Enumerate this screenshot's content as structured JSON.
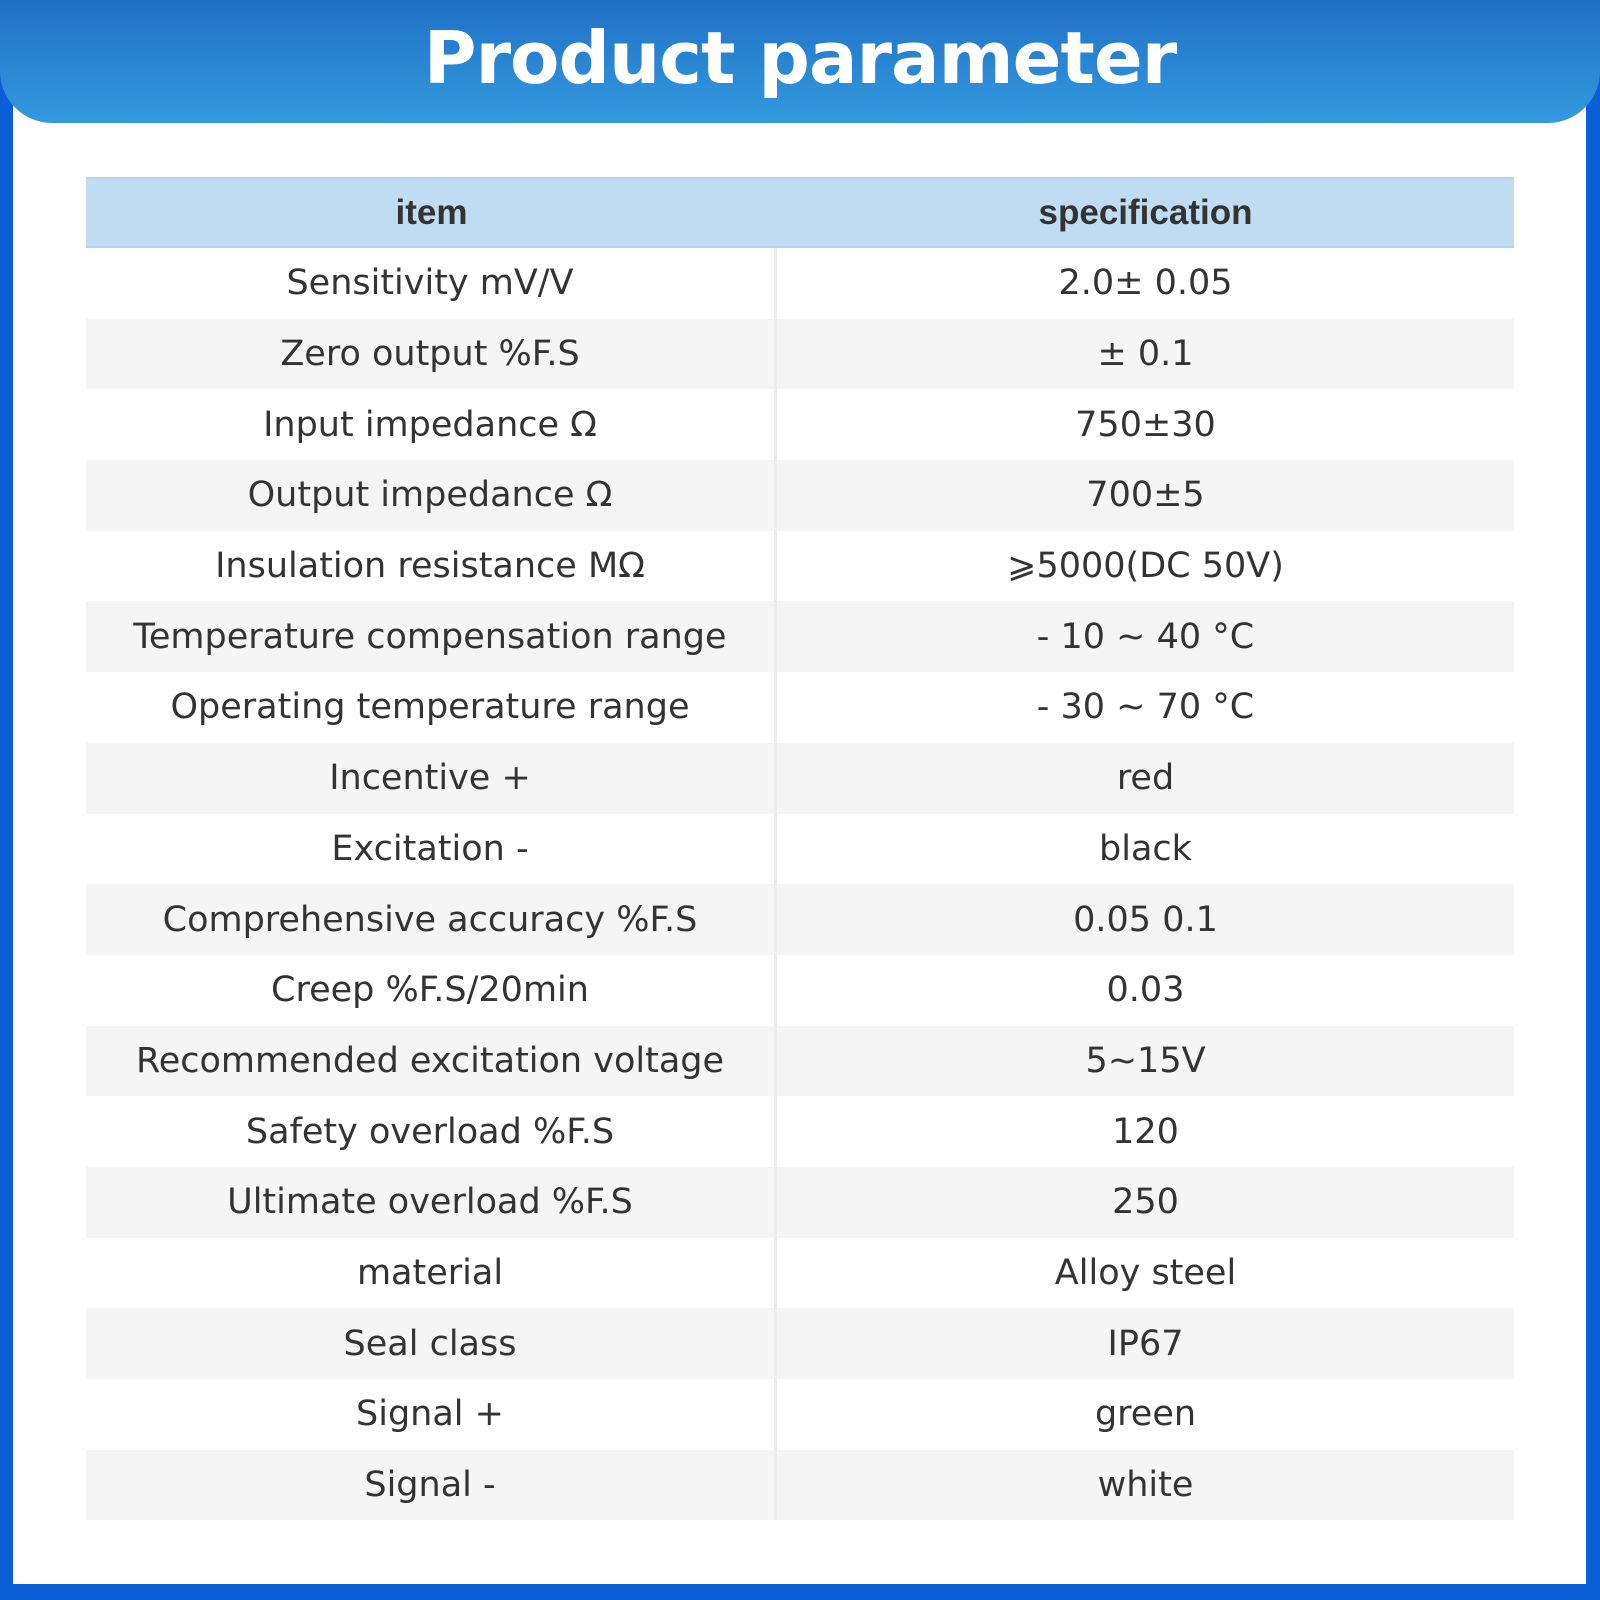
{
  "title": "Product parameter",
  "table": {
    "headers": [
      "item",
      "specification"
    ],
    "rows": [
      [
        "Sensitivity mV/V",
        "2.0± 0.05"
      ],
      [
        "Zero output %F.S",
        "± 0.1"
      ],
      [
        "Input impedance Ω",
        "750±30"
      ],
      [
        "Output impedance Ω",
        "700±5"
      ],
      [
        "Insulation resistance MΩ",
        "⩾5000(DC 50V)"
      ],
      [
        "Temperature compensation range",
        "- 10 ~ 40 °C"
      ],
      [
        "Operating temperature range",
        "- 30 ~ 70 °C"
      ],
      [
        "Incentive +",
        "red"
      ],
      [
        "Excitation -",
        "black"
      ],
      [
        "Comprehensive accuracy %F.S",
        "0.05 0.1"
      ],
      [
        "Creep %F.S/20min",
        "0.03"
      ],
      [
        "Recommended excitation voltage",
        "5~15V"
      ],
      [
        "Safety overload %F.S",
        "120"
      ],
      [
        "Ultimate overload %F.S",
        "250"
      ],
      [
        "material",
        "Alloy steel"
      ],
      [
        "Seal class",
        "IP67"
      ],
      [
        "Signal +",
        "green"
      ],
      [
        "Signal -",
        "white"
      ]
    ]
  },
  "colors": {
    "frame": "#0a5fd6",
    "header_top": "#2070c6",
    "header_bottom": "#339ade",
    "table_header": "#bfdcf3",
    "row_alt": "#f6f5f6"
  }
}
